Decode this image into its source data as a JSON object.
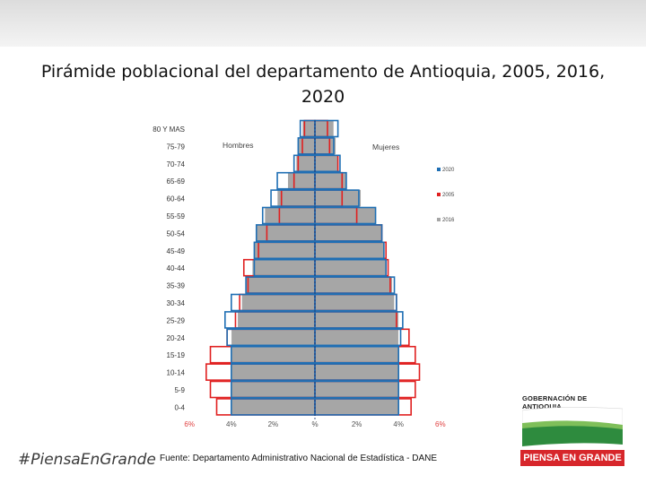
{
  "slide": {
    "title": "Pirámide poblacional del departamento de Antioquia, 2005, 2016, 2020",
    "source": "Fuente: Departamento Administrativo Nacional de Estadística - DANE",
    "hashtag": "#PiensaEnGrande",
    "logo_text": "GOBERNACIÓN DE ANTIOQUIA",
    "badge_text": "PIENSA EN GRANDE"
  },
  "chart_data": {
    "type": "bar",
    "orientation": "horizontal-pyramid",
    "title": "",
    "age_groups": [
      "80 Y MAS",
      "75-79",
      "70-74",
      "65-69",
      "60-64",
      "55-59",
      "50-54",
      "45-49",
      "40-44",
      "35-39",
      "30-34",
      "25-29",
      "20-24",
      "15-19",
      "10-14",
      "5-9",
      "0-4"
    ],
    "side_labels": {
      "left": "Hombres",
      "right": "Mujeres"
    },
    "xlabel": "",
    "ylabel": "",
    "xlim": [
      -6,
      6
    ],
    "x_ticks": [
      {
        "value": -6,
        "label": "6%"
      },
      {
        "value": -4,
        "label": "4%"
      },
      {
        "value": -2,
        "label": "2%"
      },
      {
        "value": 0,
        "label": "%"
      },
      {
        "value": 2,
        "label": "2%"
      },
      {
        "value": 4,
        "label": "4%"
      },
      {
        "value": 6,
        "label": "6%"
      }
    ],
    "legend_position": "right",
    "series": [
      {
        "name": "2016",
        "color": "#a6a6a6",
        "style": "filled",
        "men": [
          0.6,
          0.8,
          0.9,
          1.3,
          1.8,
          2.4,
          2.8,
          2.9,
          3.0,
          3.3,
          3.5,
          3.7,
          4.0,
          4.0,
          4.0,
          4.0,
          4.0
        ],
        "women": [
          0.9,
          1.0,
          1.1,
          1.5,
          2.2,
          2.9,
          3.2,
          3.3,
          3.4,
          3.7,
          3.8,
          4.0,
          4.0,
          4.0,
          4.0,
          4.0,
          4.0
        ]
      },
      {
        "name": "2005",
        "color": "#e02020",
        "style": "outline",
        "men": [
          0.5,
          0.6,
          0.8,
          1.0,
          1.6,
          1.7,
          2.3,
          2.7,
          3.4,
          3.2,
          3.6,
          3.8,
          4.2,
          5.0,
          5.2,
          5.0,
          4.7
        ],
        "women": [
          0.6,
          0.7,
          1.1,
          1.3,
          1.3,
          2.0,
          3.2,
          3.4,
          3.5,
          3.6,
          3.9,
          3.9,
          4.5,
          4.8,
          5.0,
          4.8,
          4.6
        ]
      },
      {
        "name": "2020",
        "color": "#1f6fb4",
        "style": "outline",
        "men": [
          0.7,
          0.8,
          1.0,
          1.8,
          2.1,
          2.5,
          2.8,
          2.9,
          2.9,
          3.3,
          4.0,
          4.3,
          4.2,
          4.0,
          4.0,
          4.0,
          4.0
        ],
        "women": [
          1.1,
          0.9,
          1.2,
          1.5,
          2.1,
          2.9,
          3.2,
          3.3,
          3.4,
          3.8,
          3.9,
          4.2,
          4.1,
          4.0,
          4.0,
          4.0,
          4.0
        ]
      }
    ]
  }
}
